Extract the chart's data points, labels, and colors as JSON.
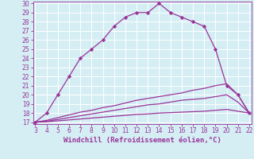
{
  "xlabel": "Windchill (Refroidissement éolien,°C)",
  "x_values": [
    3,
    4,
    5,
    6,
    7,
    8,
    9,
    10,
    11,
    12,
    13,
    14,
    15,
    16,
    17,
    18,
    19,
    20,
    21,
    22
  ],
  "line1_y": [
    17.0,
    18.0,
    20.0,
    22.0,
    24.0,
    25.0,
    26.0,
    27.5,
    28.5,
    29.0,
    29.0,
    30.0,
    29.0,
    28.5,
    28.0,
    27.5,
    25.0,
    21.0,
    20.0,
    18.0
  ],
  "line2_y": [
    17.0,
    17.2,
    17.5,
    17.8,
    18.1,
    18.3,
    18.6,
    18.8,
    19.1,
    19.4,
    19.6,
    19.8,
    20.0,
    20.2,
    20.5,
    20.7,
    21.0,
    21.2,
    20.0,
    18.0
  ],
  "line3_y": [
    17.0,
    17.1,
    17.3,
    17.5,
    17.7,
    17.9,
    18.1,
    18.3,
    18.5,
    18.7,
    18.9,
    19.0,
    19.2,
    19.4,
    19.5,
    19.6,
    19.8,
    20.0,
    19.2,
    18.0
  ],
  "line4_y": [
    17.0,
    17.05,
    17.15,
    17.25,
    17.35,
    17.45,
    17.55,
    17.65,
    17.75,
    17.85,
    17.9,
    18.0,
    18.05,
    18.1,
    18.15,
    18.2,
    18.3,
    18.4,
    18.2,
    18.0
  ],
  "line_color": "#993399",
  "bg_color": "#d4eef4",
  "grid_color": "#ffffff",
  "ylim": [
    17,
    30
  ],
  "xlim": [
    3,
    22
  ],
  "yticks": [
    17,
    18,
    19,
    20,
    21,
    22,
    23,
    24,
    25,
    26,
    27,
    28,
    29,
    30
  ],
  "xticks": [
    3,
    4,
    5,
    6,
    7,
    8,
    9,
    10,
    11,
    12,
    13,
    14,
    15,
    16,
    17,
    18,
    19,
    20,
    21,
    22
  ],
  "marker": "D",
  "markersize": 2.2,
  "linewidth": 0.9,
  "xlabel_fontsize": 6.5,
  "tick_fontsize": 5.5
}
